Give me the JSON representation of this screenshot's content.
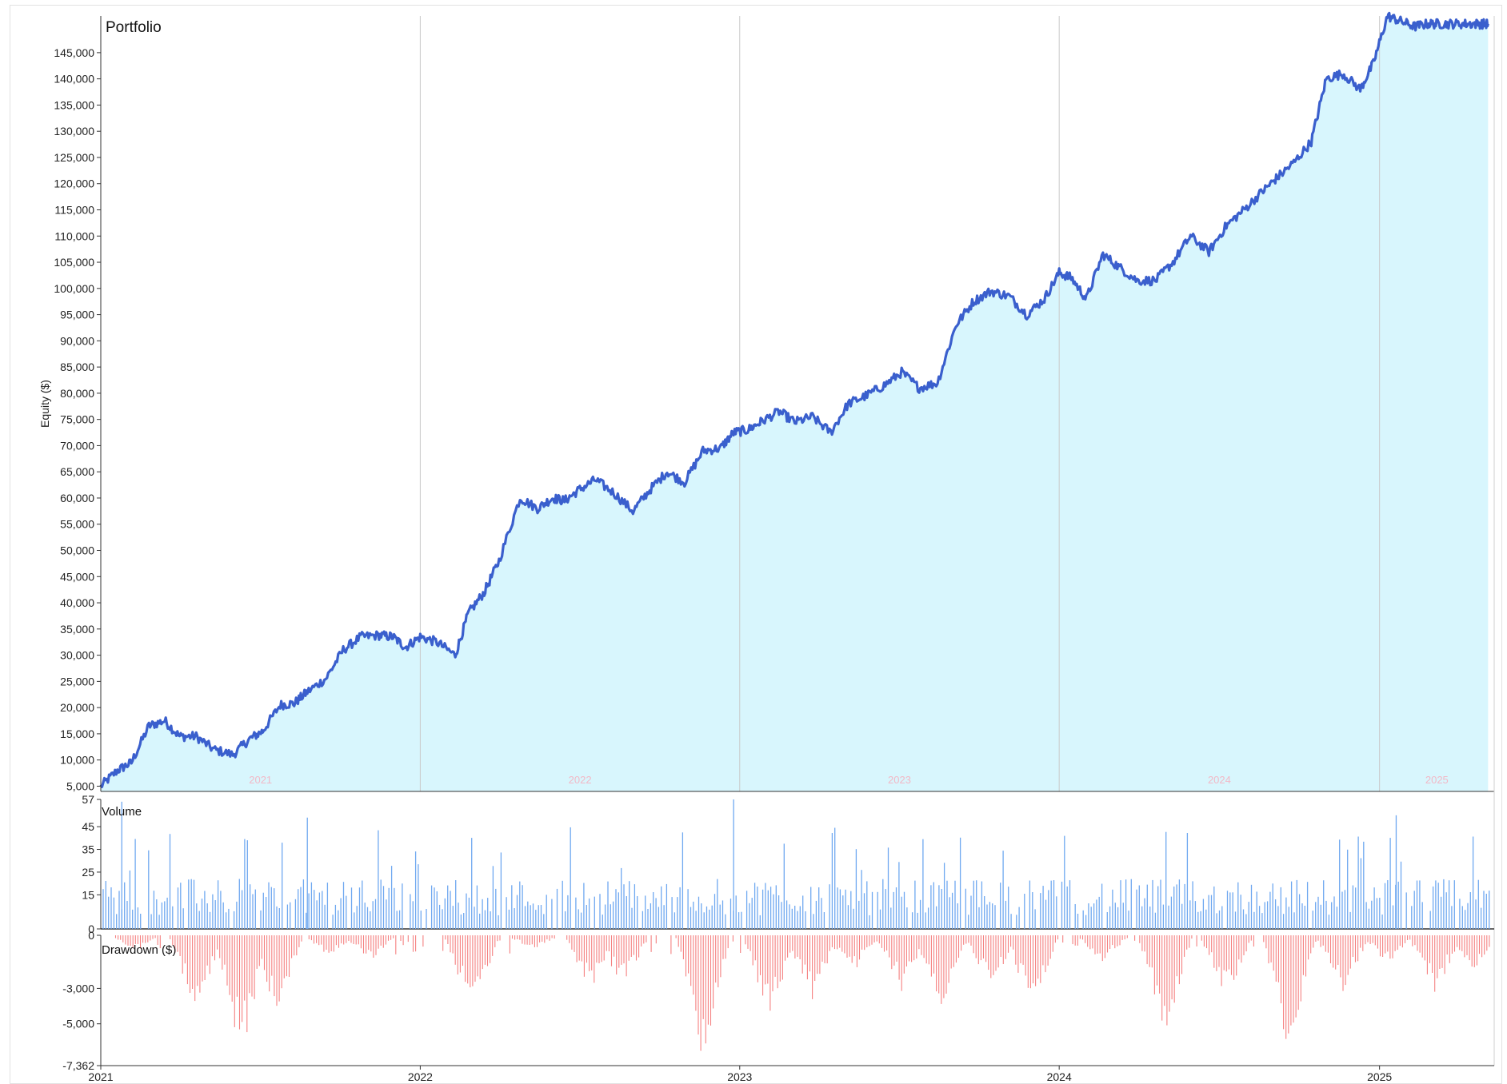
{
  "chart_data": [
    {
      "type": "area",
      "title": "Portfolio",
      "ylabel": "Equity ($)",
      "ylim": [
        4000,
        152000
      ],
      "y_ticks": [
        "5,000",
        "10,000",
        "15,000",
        "20,000",
        "25,000",
        "30,000",
        "35,000",
        "40,000",
        "45,000",
        "50,000",
        "55,000",
        "60,000",
        "65,000",
        "70,000",
        "75,000",
        "80,000",
        "85,000",
        "90,000",
        "95,000",
        "100,000",
        "105,000",
        "110,000",
        "115,000",
        "120,000",
        "125,000",
        "130,000",
        "135,000",
        "140,000",
        "145,000"
      ],
      "year_labels": [
        "2021",
        "2022",
        "2023",
        "2024",
        "2025"
      ],
      "grid": "vertical year lines",
      "x": [
        "2021-01-01",
        "2021-01-20",
        "2021-02-05",
        "2021-02-25",
        "2021-03-15",
        "2021-04-01",
        "2021-04-20",
        "2021-05-10",
        "2021-06-01",
        "2021-06-20",
        "2021-07-05",
        "2021-07-25",
        "2021-08-10",
        "2021-08-25",
        "2021-09-15",
        "2021-10-05",
        "2021-10-25",
        "2021-11-15",
        "2021-12-01",
        "2021-12-15",
        "2022-01-01",
        "2022-01-20",
        "2022-02-10",
        "2022-02-25",
        "2022-03-15",
        "2022-04-01",
        "2022-04-25",
        "2022-05-15",
        "2022-06-01",
        "2022-06-15",
        "2022-07-01",
        "2022-07-20",
        "2022-08-10",
        "2022-09-01",
        "2022-09-20",
        "2022-10-10",
        "2022-10-30",
        "2022-11-20",
        "2022-12-10",
        "2022-12-25",
        "2023-01-10",
        "2023-01-25",
        "2023-02-15",
        "2023-03-05",
        "2023-03-25",
        "2023-04-15",
        "2023-05-05",
        "2023-05-25",
        "2023-06-15",
        "2023-07-05",
        "2023-07-25",
        "2023-08-15",
        "2023-09-05",
        "2023-09-25",
        "2023-10-15",
        "2023-11-05",
        "2023-11-25",
        "2023-12-15",
        "2024-01-01",
        "2024-01-15",
        "2024-02-01",
        "2024-02-20",
        "2024-03-10",
        "2024-03-30",
        "2024-04-20",
        "2024-05-10",
        "2024-05-30",
        "2024-06-20",
        "2024-07-10",
        "2024-07-30",
        "2024-08-20",
        "2024-09-05",
        "2024-09-25",
        "2024-10-15",
        "2024-11-01",
        "2024-11-20",
        "2024-12-10",
        "2024-12-25",
        "2025-01-10",
        "2025-01-25",
        "2025-02-10",
        "2025-02-25",
        "2025-03-10",
        "2025-03-25",
        "2025-04-10",
        "2025-04-25",
        "2025-05-05"
      ],
      "series": [
        {
          "values": [
            5000,
            8000,
            9500,
            16500,
            17500,
            14500,
            14500,
            12000,
            11000,
            14000,
            15500,
            20500,
            20800,
            23000,
            25500,
            31000,
            33500,
            33800,
            33500,
            31500,
            33500,
            32500,
            30000,
            38000,
            42000,
            48000,
            60000,
            58000,
            60000,
            59500,
            61500,
            63500,
            61000,
            57500,
            61500,
            65000,
            63000,
            69000,
            69500,
            72500,
            73000,
            74500,
            76500,
            74500,
            75500,
            72500,
            78000,
            79500,
            81500,
            84000,
            81000,
            82000,
            93000,
            97500,
            99500,
            98500,
            95000,
            98000,
            103000,
            102000,
            98000,
            106500,
            104000,
            101500,
            101500,
            105000,
            110000,
            107000,
            112000,
            115000,
            118500,
            121000,
            124000,
            128000,
            140000,
            141000,
            138000,
            143000,
            152000,
            151000,
            150000,
            150500,
            150500,
            150500,
            150500,
            150500,
            150500
          ],
          "color": "#3a5fcd",
          "fill": "#d8f6fd"
        }
      ]
    },
    {
      "type": "bar",
      "title": "Volume",
      "ylim": [
        0,
        57
      ],
      "y_ticks": [
        "0",
        "15",
        "25",
        "35",
        "45",
        "57"
      ],
      "color": "#6fa8f0"
    },
    {
      "type": "bar",
      "title": "Drawdown ($)",
      "ylim": [
        -7362,
        0
      ],
      "y_ticks": [
        "0",
        "-3,000",
        "-5,000",
        "-7,362"
      ],
      "x_ticks": [
        "2021",
        "2022",
        "2023",
        "2024",
        "2025"
      ],
      "color": "#f58080"
    }
  ]
}
